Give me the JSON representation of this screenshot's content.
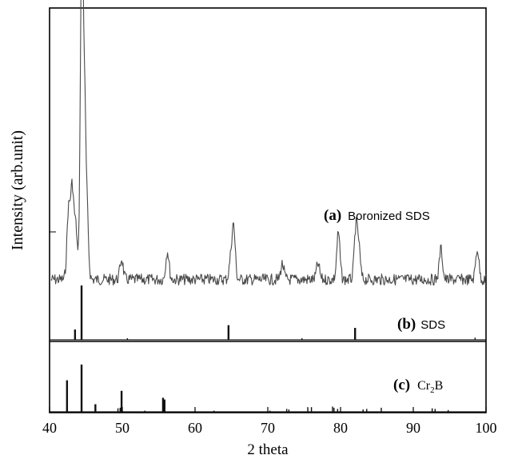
{
  "chart_data": {
    "type": "line",
    "title": "",
    "xlabel": "2 theta",
    "ylabel": "Intensity (arb.unit)",
    "xlim": [
      40,
      100
    ],
    "x_ticks": [
      40,
      50,
      60,
      70,
      80,
      90,
      100
    ],
    "grid": false,
    "colors": {
      "pattern": "#4a4a4a",
      "sticks": "#111111",
      "axis": "#000000"
    },
    "panel_labels": [
      {
        "id": "a",
        "letter": "(a)",
        "text": "Boronized SDS"
      },
      {
        "id": "b",
        "letter": "(b)",
        "text": "SDS"
      },
      {
        "id": "c",
        "letter": "(c)",
        "text": "Cr2B"
      }
    ],
    "series": [
      {
        "name": "Boronized SDS",
        "kind": "pattern",
        "baseline": 0.06,
        "peaks": [
          {
            "x": 42.6,
            "h": 0.26
          },
          {
            "x": 43.1,
            "h": 0.34
          },
          {
            "x": 43.6,
            "h": 0.2
          },
          {
            "x": 44.3,
            "h": 0.62
          },
          {
            "x": 44.5,
            "h": 1.0
          },
          {
            "x": 44.8,
            "h": 0.55
          },
          {
            "x": 45.1,
            "h": 0.3
          },
          {
            "x": 49.9,
            "h": 0.08
          },
          {
            "x": 56.2,
            "h": 0.11
          },
          {
            "x": 64.9,
            "h": 0.07
          },
          {
            "x": 65.3,
            "h": 0.2
          },
          {
            "x": 72.0,
            "h": 0.06
          },
          {
            "x": 76.9,
            "h": 0.06
          },
          {
            "x": 79.7,
            "h": 0.18
          },
          {
            "x": 82.1,
            "h": 0.19
          },
          {
            "x": 82.5,
            "h": 0.12
          },
          {
            "x": 93.8,
            "h": 0.12
          },
          {
            "x": 98.8,
            "h": 0.12
          }
        ]
      },
      {
        "name": "SDS",
        "kind": "sticks",
        "lines": [
          {
            "x": 43.5,
            "h": 0.19
          },
          {
            "x": 44.4,
            "h": 1.0
          },
          {
            "x": 50.7,
            "h": 0.03
          },
          {
            "x": 64.6,
            "h": 0.27
          },
          {
            "x": 74.7,
            "h": 0.03
          },
          {
            "x": 82.0,
            "h": 0.22
          },
          {
            "x": 98.5,
            "h": 0.04
          }
        ]
      },
      {
        "name": "Cr2B",
        "kind": "sticks",
        "lines": [
          {
            "x": 42.4,
            "h": 0.54
          },
          {
            "x": 44.4,
            "h": 0.81
          },
          {
            "x": 46.3,
            "h": 0.13
          },
          {
            "x": 49.4,
            "h": 0.06
          },
          {
            "x": 49.7,
            "h": 0.07
          },
          {
            "x": 49.9,
            "h": 0.36
          },
          {
            "x": 53.1,
            "h": 0.02
          },
          {
            "x": 55.6,
            "h": 0.24
          },
          {
            "x": 55.8,
            "h": 0.21
          },
          {
            "x": 62.6,
            "h": 0.02
          },
          {
            "x": 70.3,
            "h": 0.02
          },
          {
            "x": 72.6,
            "h": 0.05
          },
          {
            "x": 72.9,
            "h": 0.04
          },
          {
            "x": 75.5,
            "h": 0.08
          },
          {
            "x": 76.0,
            "h": 0.08
          },
          {
            "x": 78.9,
            "h": 0.09
          },
          {
            "x": 79.1,
            "h": 0.07
          },
          {
            "x": 79.6,
            "h": 0.05
          },
          {
            "x": 83.1,
            "h": 0.04
          },
          {
            "x": 83.6,
            "h": 0.05
          },
          {
            "x": 85.6,
            "h": 0.07
          },
          {
            "x": 92.6,
            "h": 0.06
          },
          {
            "x": 93.0,
            "h": 0.05
          },
          {
            "x": 94.8,
            "h": 0.03
          }
        ]
      }
    ]
  }
}
